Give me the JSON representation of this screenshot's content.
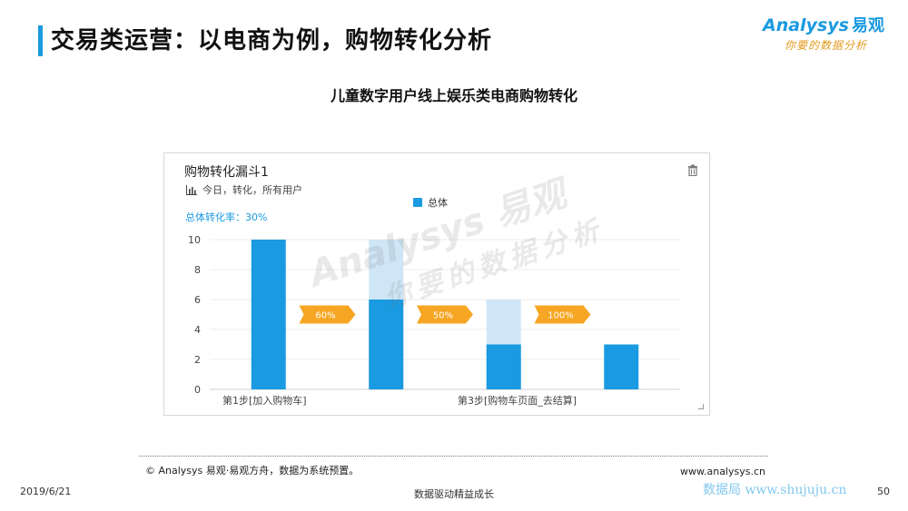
{
  "header": {
    "title": "交易类运营：以电商为例，购物转化分析",
    "subtitle": "儿童数字用户线上娱乐类电商购物转化"
  },
  "logo": {
    "brand": "Analysys",
    "brand_cn": "易观",
    "tagline": "你要的数据分析"
  },
  "panel": {
    "title": "购物转化漏斗1",
    "meta": "今日，转化，所有用户",
    "overall_rate": "总体转化率：30%",
    "icons": {
      "meta": "bar-chart-icon",
      "delete": "trash-icon"
    }
  },
  "watermark": {
    "main": "Analysys 易观",
    "tagline": "你要的数据分析"
  },
  "chart_data": {
    "type": "bar",
    "categories": [
      "第1步[加入购物车]",
      "",
      "第3步[购物车页面_去结算]",
      ""
    ],
    "x_tick_labels": [
      "第1步[加入购物车]",
      "第3步[购物车页面_去结算]"
    ],
    "series": [
      {
        "name": "总体",
        "values": [
          10,
          6,
          3,
          3
        ],
        "color": "#1a9ae0"
      }
    ],
    "previous_step_ghost": [
      null,
      10,
      6,
      null
    ],
    "ghost_color": "#cfe6f6",
    "conversion_labels": [
      "60%",
      "50%",
      "100%"
    ],
    "conversion_color": "#f6a623",
    "ylim": [
      0,
      10
    ],
    "yticks": [
      0,
      2,
      4,
      6,
      8,
      10
    ],
    "grid": true,
    "legend": "top-center",
    "xlabel": "",
    "ylabel": ""
  },
  "footer": {
    "source": "© Analysys 易观·易观方舟，数据为系统预置。",
    "website": "www.analysys.cn",
    "date": "2019/6/21",
    "slogan": "数据驱动精益成长",
    "site_watermark": "数据局 www.shujuju.cn",
    "page": "50"
  }
}
